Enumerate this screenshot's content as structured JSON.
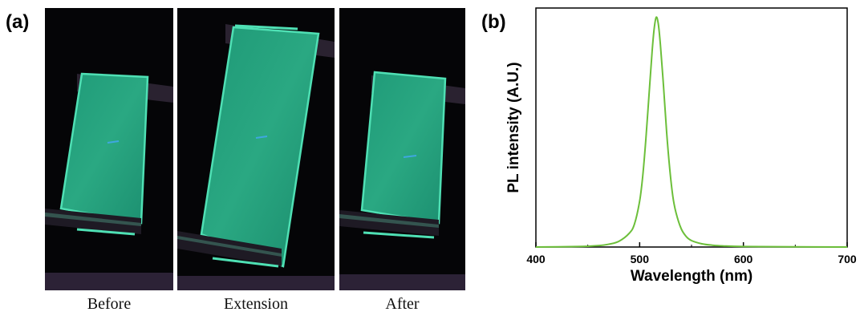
{
  "panel_a": {
    "label": "(a)",
    "captions": [
      "Before",
      "Extension",
      "After"
    ]
  },
  "panel_b": {
    "label": "(b)"
  },
  "colors": {
    "spectrum_line": "#6cbf3a",
    "film_glow": "#2bb586",
    "photo_background": "#050507"
  },
  "chart_data": {
    "type": "line",
    "title": "",
    "xlabel": "Wavelength (nm)",
    "ylabel": "PL intensity (A.U.)",
    "xlim": [
      400,
      700
    ],
    "ylim": [
      0,
      1.04
    ],
    "xticks": [
      400,
      500,
      600,
      700
    ],
    "grid": false,
    "legend": "none",
    "peak_wavelength": 516,
    "series": [
      {
        "x": [
          400,
          440,
          460,
          470,
          480,
          490,
          495,
          500,
          503,
          506,
          509,
          512,
          514,
          516,
          518,
          520,
          523,
          526,
          529,
          532,
          535,
          540,
          545,
          550,
          560,
          570,
          580,
          600,
          650,
          700
        ],
        "y": [
          0.0,
          0.002,
          0.006,
          0.012,
          0.025,
          0.06,
          0.1,
          0.2,
          0.31,
          0.47,
          0.66,
          0.85,
          0.95,
          1.0,
          0.97,
          0.88,
          0.7,
          0.5,
          0.34,
          0.22,
          0.15,
          0.08,
          0.045,
          0.028,
          0.014,
          0.008,
          0.005,
          0.002,
          0.001,
          0.0
        ]
      }
    ]
  }
}
